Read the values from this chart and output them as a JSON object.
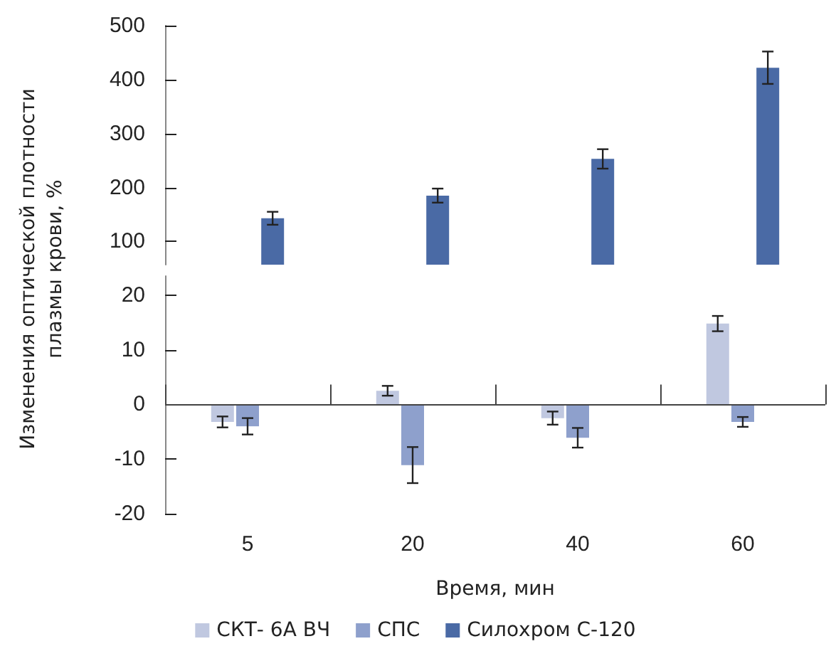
{
  "chart_data": [
    {
      "type": "bar",
      "categories": [
        "5",
        "20",
        "40",
        "60"
      ],
      "series": [
        {
          "color": "#c0c8e0",
          "values": [
            null,
            null,
            null,
            null
          ]
        },
        {
          "color": "#8ea0cc",
          "values": [
            null,
            null,
            null,
            null
          ]
        },
        {
          "color": "#4a6aa5",
          "values": [
            143,
            185,
            253,
            422
          ],
          "errors": [
            12,
            13,
            18,
            30
          ]
        }
      ],
      "ylim": [
        57,
        500
      ],
      "yticks": [
        100,
        200,
        300,
        400,
        500
      ],
      "tick_labels": "y",
      "legend": false,
      "grid": false
    },
    {
      "type": "bar",
      "categories": [
        "5",
        "20",
        "40",
        "60"
      ],
      "xlabel": "Время, мин",
      "ylabel": "Изменения оптической плотности плазмы крови, %",
      "series": [
        {
          "name": "СКТ- 6А ВЧ",
          "color": "#c0c8e0",
          "values": [
            -3.2,
            2.5,
            -2.5,
            14.8
          ],
          "errors": [
            1,
            0.9,
            1.2,
            1.4
          ]
        },
        {
          "name": "СПС",
          "color": "#8ea0cc",
          "values": [
            -4,
            -11.1,
            -6.1,
            -3.2
          ],
          "errors": [
            1.5,
            3.3,
            1.8,
            0.9
          ]
        },
        {
          "name": "Силохром С-120",
          "color": "#4a6aa5",
          "values": [
            null,
            null,
            null,
            null
          ]
        }
      ],
      "ylim": [
        -20,
        23.5
      ],
      "yticks": [
        -20,
        -10,
        0,
        10,
        20
      ],
      "legend": "bottom",
      "grid": false,
      "ref_lines": [
        {
          "axis": "y",
          "value": 0,
          "color": "#444444"
        }
      ]
    }
  ]
}
